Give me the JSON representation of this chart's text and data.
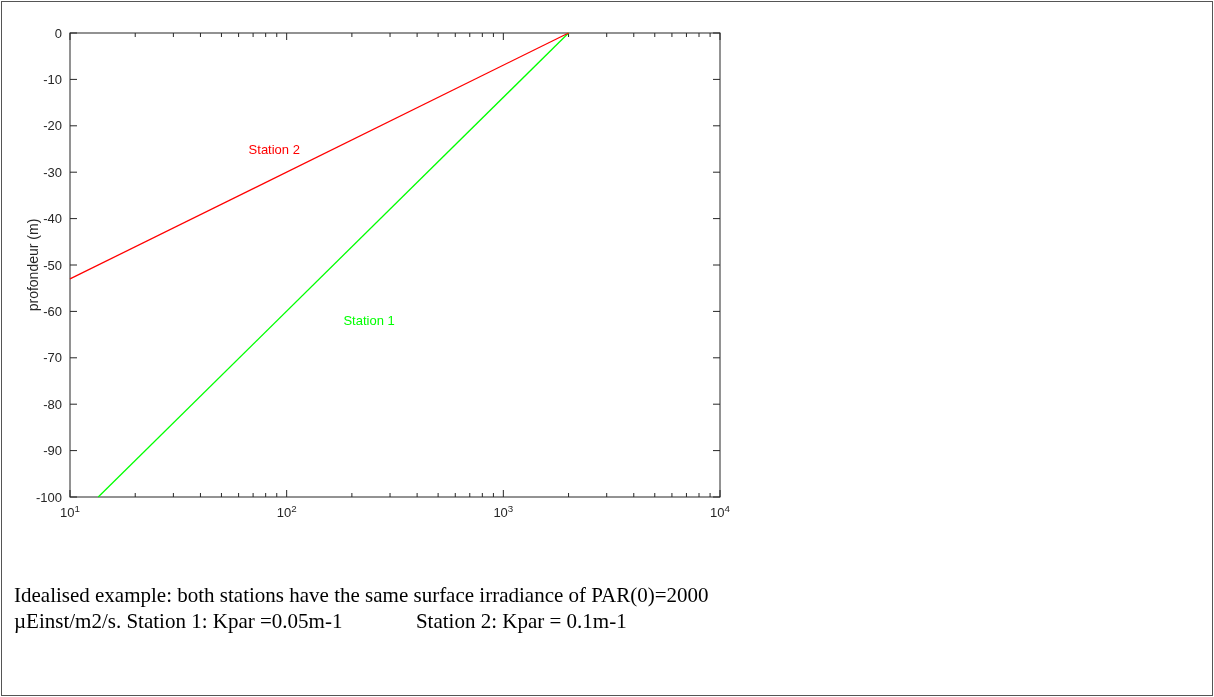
{
  "chart_data": {
    "type": "line",
    "ylabel": "profondeur (m)",
    "log": "x",
    "xlim": [
      10,
      10000
    ],
    "xticks": [
      {
        "value": 10,
        "label": "10$^{1}$"
      },
      {
        "value": 20,
        "label": null
      },
      {
        "value": 30,
        "label": null
      },
      {
        "value": 40,
        "label": null
      },
      {
        "value": 50,
        "label": null
      },
      {
        "value": 60,
        "label": null
      },
      {
        "value": 70,
        "label": null
      },
      {
        "value": 80,
        "label": null
      },
      {
        "value": 90,
        "label": null
      },
      {
        "value": 100,
        "label": "10$^{2}$"
      },
      {
        "value": 200,
        "label": null
      },
      {
        "value": 300,
        "label": null
      },
      {
        "value": 400,
        "label": null
      },
      {
        "value": 500,
        "label": null
      },
      {
        "value": 600,
        "label": null
      },
      {
        "value": 700,
        "label": null
      },
      {
        "value": 800,
        "label": null
      },
      {
        "value": 900,
        "label": null
      },
      {
        "value": 1000,
        "label": "10$^{3}$"
      },
      {
        "value": 2000,
        "label": null
      },
      {
        "value": 3000,
        "label": null
      },
      {
        "value": 4000,
        "label": null
      },
      {
        "value": 5000,
        "label": null
      },
      {
        "value": 6000,
        "label": null
      },
      {
        "value": 7000,
        "label": null
      },
      {
        "value": 8000,
        "label": null
      },
      {
        "value": 9000,
        "label": null
      },
      {
        "value": 10000,
        "label": "10$^{4}$"
      }
    ],
    "ylim": [
      -100,
      0
    ],
    "yticks": [
      -100,
      -90,
      -80,
      -70,
      -60,
      -50,
      -40,
      -30,
      -20,
      -10,
      0
    ],
    "grid": false,
    "legend": false,
    "marker": "none",
    "line_style": "solid",
    "series": [
      {
        "name": "Station 1",
        "color": "#00ff00",
        "x": [
          13.5,
          2000
        ],
        "values": [
          -100,
          0
        ]
      },
      {
        "name": "Station 2",
        "color": "#ff0000",
        "x": [
          10,
          2000
        ],
        "values": [
          -53,
          0
        ]
      }
    ],
    "annotations": [
      "Idealised example: both stations have the same surface irradiance of PAR(0)=2000",
      "µEinst/m2/s. Station 1: Kpar =0.05m-1              Station 2: Kpar = 0.1m-1"
    ]
  }
}
